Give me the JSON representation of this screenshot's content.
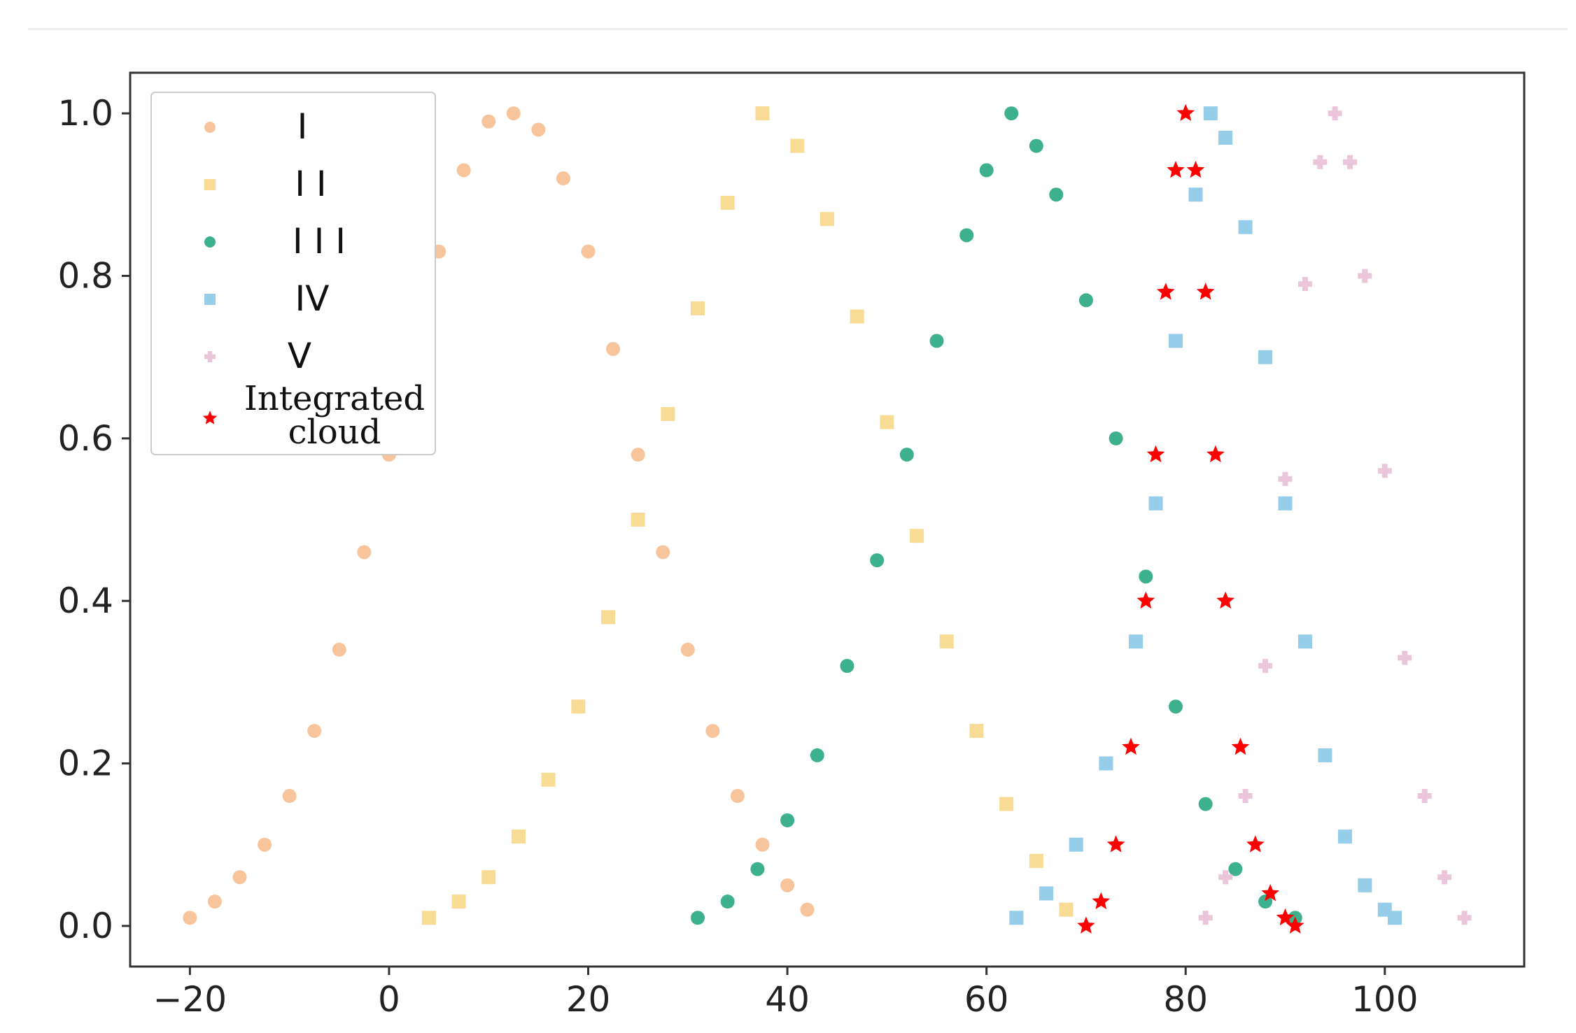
{
  "chart_data": {
    "type": "scatter",
    "title": "",
    "xlabel": "",
    "ylabel": "",
    "xlim": [
      -26,
      114
    ],
    "ylim": [
      -0.05,
      1.05
    ],
    "x_ticks": [
      -20,
      0,
      20,
      40,
      60,
      80,
      100
    ],
    "x_tick_labels": [
      "−20",
      "0",
      "20",
      "40",
      "60",
      "80",
      "100"
    ],
    "y_ticks": [
      0.0,
      0.2,
      0.4,
      0.6,
      0.8,
      1.0
    ],
    "y_tick_labels": [
      "0.0",
      "0.2",
      "0.4",
      "0.6",
      "0.8",
      "1.0"
    ],
    "grid": false,
    "legend_position": "top-left",
    "series": [
      {
        "name": "I",
        "marker": "circle",
        "color": "#F8C49B",
        "x": [
          -20,
          -17.5,
          -15,
          -12.5,
          -10,
          -7.5,
          -5,
          -2.5,
          0,
          2.5,
          5,
          7.5,
          10,
          12.5,
          15,
          17.5,
          20,
          22.5,
          25,
          27.5,
          30,
          32.5,
          35,
          37.5,
          40,
          42
        ],
        "y": [
          0.01,
          0.03,
          0.06,
          0.1,
          0.16,
          0.24,
          0.34,
          0.46,
          0.58,
          0.71,
          0.83,
          0.93,
          0.99,
          1.0,
          0.98,
          0.92,
          0.83,
          0.71,
          0.58,
          0.46,
          0.34,
          0.24,
          0.16,
          0.1,
          0.05,
          0.02
        ]
      },
      {
        "name": "II",
        "marker": "square",
        "color": "#F8DC96",
        "x": [
          4,
          7,
          10,
          13,
          16,
          19,
          22,
          25,
          28,
          31,
          34,
          37.5,
          41,
          44,
          47,
          50,
          53,
          56,
          59,
          62,
          65,
          68
        ],
        "y": [
          0.01,
          0.03,
          0.06,
          0.11,
          0.18,
          0.27,
          0.38,
          0.5,
          0.63,
          0.76,
          0.89,
          1.0,
          0.96,
          0.87,
          0.75,
          0.62,
          0.48,
          0.35,
          0.24,
          0.15,
          0.08,
          0.02
        ]
      },
      {
        "name": "III",
        "marker": "circle",
        "color": "#3DB08E",
        "x": [
          31,
          34,
          37,
          40,
          43,
          46,
          49,
          52,
          55,
          58,
          60,
          62.5,
          65,
          67,
          70,
          73,
          76,
          79,
          82,
          85,
          88,
          91
        ],
        "y": [
          0.01,
          0.03,
          0.07,
          0.13,
          0.21,
          0.32,
          0.45,
          0.58,
          0.72,
          0.85,
          0.93,
          1.0,
          0.96,
          0.9,
          0.77,
          0.6,
          0.43,
          0.27,
          0.15,
          0.07,
          0.03,
          0.01
        ]
      },
      {
        "name": "IV",
        "marker": "square",
        "color": "#96CDE8",
        "x": [
          63,
          66,
          69,
          72,
          75,
          77,
          79,
          81,
          82.5,
          84,
          86,
          88,
          90,
          92,
          94,
          96,
          98,
          100,
          101
        ],
        "y": [
          0.01,
          0.04,
          0.1,
          0.2,
          0.35,
          0.52,
          0.72,
          0.9,
          1.0,
          0.97,
          0.86,
          0.7,
          0.52,
          0.35,
          0.21,
          0.11,
          0.05,
          0.02,
          0.01
        ]
      },
      {
        "name": "V",
        "marker": "plus",
        "color": "#EBC6DA",
        "x": [
          82,
          84,
          86,
          88,
          90,
          92,
          93.5,
          95,
          96.5,
          98,
          100,
          102,
          104,
          106,
          108
        ],
        "y": [
          0.01,
          0.06,
          0.16,
          0.32,
          0.55,
          0.79,
          0.94,
          1.0,
          0.94,
          0.8,
          0.56,
          0.33,
          0.16,
          0.06,
          0.01
        ]
      },
      {
        "name": "Integrated\ncloud",
        "marker": "star",
        "color": "#FF0000",
        "x": [
          70,
          71.5,
          73,
          74.5,
          76,
          77,
          78,
          79,
          80,
          81,
          82,
          83,
          84,
          85.5,
          87,
          88.5,
          90,
          91
        ],
        "y": [
          0.0,
          0.03,
          0.1,
          0.22,
          0.4,
          0.58,
          0.78,
          0.93,
          1.0,
          0.93,
          0.78,
          0.58,
          0.4,
          0.22,
          0.1,
          0.04,
          0.01,
          0.0
        ]
      }
    ]
  },
  "legend": {
    "items": [
      {
        "label": "I",
        "marker": "circle",
        "color": "#F8C49B"
      },
      {
        "label": "I I",
        "marker": "square",
        "color": "#F8DC96"
      },
      {
        "label": "I I I",
        "marker": "circle",
        "color": "#3DB08E"
      },
      {
        "label": "IV",
        "marker": "square",
        "color": "#96CDE8"
      },
      {
        "label": "V",
        "marker": "plus",
        "color": "#EBC6DA"
      },
      {
        "label_line1": "Integrated",
        "label_line2": "cloud",
        "marker": "star",
        "color": "#FF0000"
      }
    ]
  }
}
